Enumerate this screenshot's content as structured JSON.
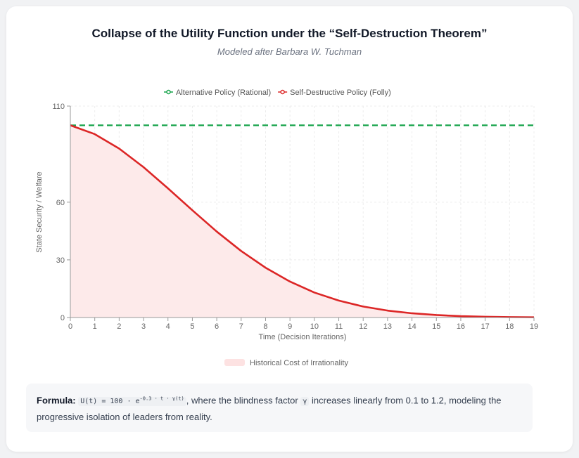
{
  "title": "Collapse of the Utility Function under the “Self-Destruction Theorem”",
  "subtitle": "Modeled after Barbara W. Tuchman",
  "chart_data": {
    "type": "line",
    "xlabel": "Time (Decision Iterations)",
    "ylabel": "State Security / Welfare",
    "x": [
      0,
      1,
      2,
      3,
      4,
      5,
      6,
      7,
      8,
      9,
      10,
      11,
      12,
      13,
      14,
      15,
      16,
      17,
      18,
      19
    ],
    "xlim": [
      0,
      19
    ],
    "ylim": [
      0,
      110
    ],
    "yticks": [
      0,
      30,
      60,
      110
    ],
    "grid": true,
    "legend_position": "top-center",
    "series": [
      {
        "name": "Alternative Policy (Rational)",
        "color": "#16a34a",
        "dashed": true,
        "values": [
          100,
          100,
          100,
          100,
          100,
          100,
          100,
          100,
          100,
          100,
          100,
          100,
          100,
          100,
          100,
          100,
          100,
          100,
          100,
          100
        ]
      },
      {
        "name": "Self-Destructive Policy (Folly)",
        "color": "#dc2626",
        "dashed": false,
        "fill": true,
        "values": [
          100,
          95.4,
          87.9,
          78.2,
          67.2,
          55.8,
          44.7,
          34.6,
          25.9,
          18.7,
          13.0,
          8.8,
          5.7,
          3.6,
          2.2,
          1.3,
          0.7,
          0.4,
          0.2,
          0.1
        ]
      }
    ],
    "area_legend": "Historical Cost of Irrationality"
  },
  "formula": {
    "label": "Formula:",
    "expr": "U(t) = 100 · e",
    "exponent": "-0.3 · t · γ(t)",
    "text1": ", where the blindness factor ",
    "gamma": "γ",
    "text2": " increases linearly from 0.1 to 1.2, modeling the progressive isolation of leaders from reality."
  }
}
